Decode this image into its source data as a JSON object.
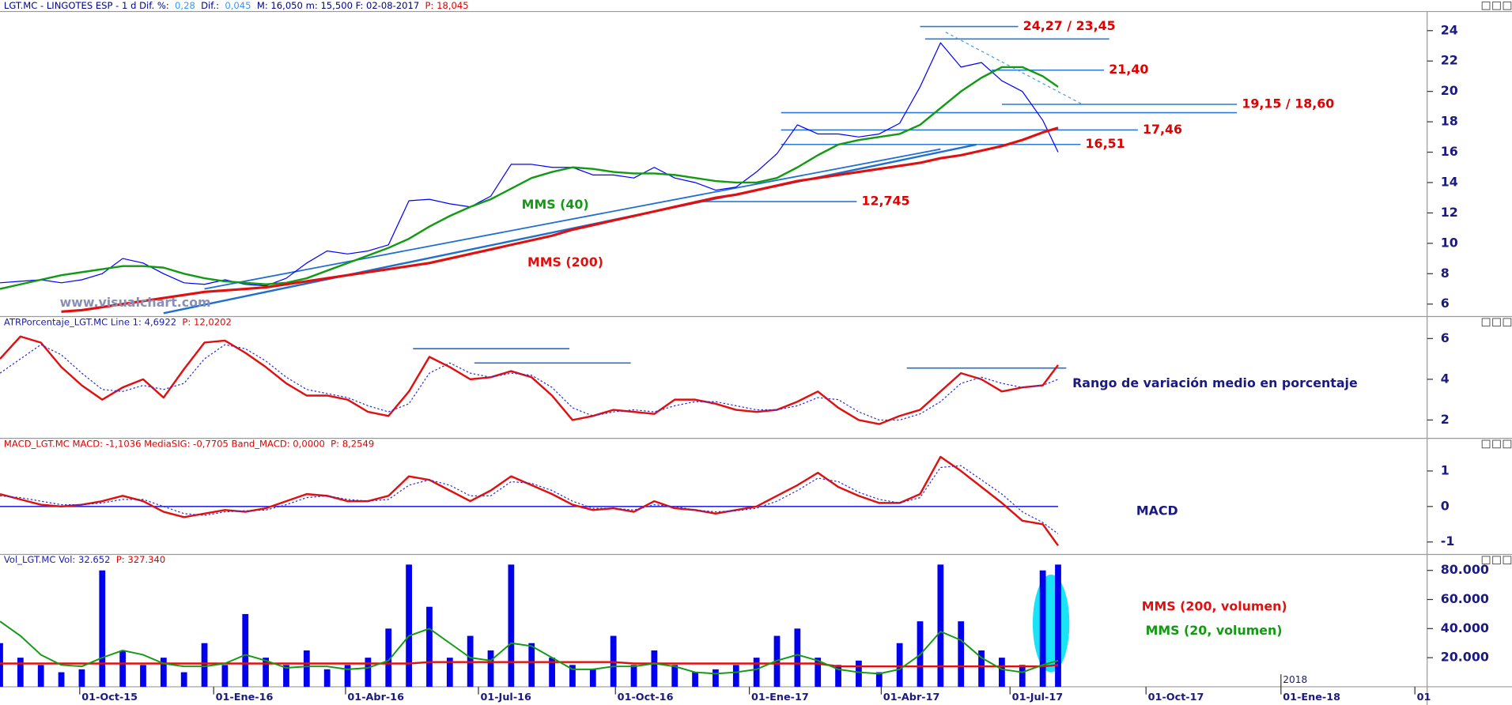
{
  "chart_data": [
    {
      "type": "line",
      "title_parts": [
        {
          "text": "LGT.MC - LINGOTES ESP -  1 d  Dif. %:",
          "color": "#00008b"
        },
        {
          "text": "0,28",
          "color": "#3399ff"
        },
        {
          "text": "Dif.:",
          "color": "#00008b"
        },
        {
          "text": "0,045",
          "color": "#3399ff"
        },
        {
          "text": "M: 16,050  m: 15,500  F: 02-08-2017",
          "color": "#00008b"
        },
        {
          "text": "P: 18,045",
          "color": "#e00000"
        }
      ],
      "watermark": "www.visualchart.com",
      "x": [
        0,
        2,
        4,
        6,
        8,
        10,
        12,
        14,
        16,
        18,
        20,
        22,
        24,
        26,
        28,
        30,
        32,
        34,
        36,
        38,
        40,
        42,
        44,
        46,
        48,
        50,
        52,
        54,
        56,
        58,
        60,
        62,
        64,
        66,
        68,
        70,
        72,
        74,
        76,
        78,
        80,
        82,
        84,
        86,
        88,
        90,
        92,
        94,
        96,
        98,
        100,
        102,
        103.5
      ],
      "xlim": [
        0,
        139.6
      ],
      "ylim": [
        5.18,
        25.26
      ],
      "yticks": [
        6,
        8,
        10,
        12,
        14,
        16,
        18,
        20,
        22,
        24
      ],
      "series": [
        {
          "color": "#0000ff",
          "width": 1,
          "values": [
            7.4,
            7.5,
            7.6,
            7.4,
            7.6,
            8.0,
            9.0,
            8.7,
            8.0,
            7.4,
            7.3,
            7.6,
            7.3,
            7.2,
            7.7,
            8.7,
            9.5,
            9.3,
            9.5,
            9.9,
            12.8,
            12.9,
            12.6,
            12.4,
            13.1,
            15.2,
            15.2,
            15.0,
            15.0,
            14.5,
            14.5,
            14.3,
            15.0,
            14.3,
            14.0,
            13.5,
            13.7,
            14.7,
            15.9,
            17.8,
            17.2,
            17.2,
            17.0,
            17.2,
            17.9,
            20.3,
            23.2,
            21.6,
            21.9,
            20.7,
            20.0,
            18.1,
            16.0
          ]
        },
        {
          "name": "MMS (40)",
          "color": "#139a13",
          "width": 2,
          "values": [
            7.0,
            7.3,
            7.6,
            7.9,
            8.1,
            8.3,
            8.5,
            8.5,
            8.4,
            8.0,
            7.7,
            7.5,
            7.4,
            7.3,
            7.4,
            7.7,
            8.2,
            8.7,
            9.2,
            9.7,
            10.3,
            11.1,
            11.8,
            12.4,
            12.9,
            13.6,
            14.3,
            14.7,
            15.0,
            14.9,
            14.7,
            14.6,
            14.6,
            14.5,
            14.3,
            14.1,
            14.0,
            14.0,
            14.3,
            15.0,
            15.8,
            16.5,
            16.8,
            17.0,
            17.2,
            17.8,
            18.9,
            20.0,
            20.9,
            21.6,
            21.6,
            21.0,
            20.3
          ]
        },
        {
          "name": "MMS (200)",
          "color": "#e01010",
          "width": 2.6,
          "values": [
            null,
            null,
            null,
            5.5,
            5.6,
            5.8,
            6.0,
            6.2,
            6.4,
            6.6,
            6.8,
            6.9,
            7.0,
            7.1,
            7.3,
            7.5,
            7.7,
            7.9,
            8.1,
            8.3,
            8.5,
            8.7,
            9.0,
            9.3,
            9.6,
            9.9,
            10.2,
            10.5,
            10.9,
            11.2,
            11.5,
            11.8,
            12.1,
            12.4,
            12.7,
            13.0,
            13.2,
            13.5,
            13.8,
            14.1,
            14.3,
            14.5,
            14.7,
            14.9,
            15.1,
            15.3,
            15.6,
            15.8,
            16.1,
            16.4,
            16.8,
            17.3,
            17.6
          ]
        }
      ],
      "levels": [
        {
          "value": 24.27,
          "from": 90,
          "to": 99.6,
          "label": "24,27 / 23,45"
        },
        {
          "value": 23.45,
          "from": 90.5,
          "to": 108.5
        },
        {
          "value": 21.4,
          "from": 97,
          "to": 108,
          "label": "21,40"
        },
        {
          "value": 19.15,
          "from": 98,
          "to": 121,
          "label": "19,15 / 18,60"
        },
        {
          "value": 18.6,
          "from": 76.4,
          "to": 121
        },
        {
          "value": 17.46,
          "from": 76.4,
          "to": 111.3,
          "label": "17,46"
        },
        {
          "value": 16.51,
          "from": 76.4,
          "to": 105.7,
          "label": "16,51"
        },
        {
          "value": 12.745,
          "from": 68,
          "to": 83.8,
          "label": "12,745"
        }
      ],
      "level_color": "#2a7ad6",
      "level_label_color": "#e00000",
      "trendlines": [
        {
          "color": "#1f6fd0",
          "width": 2,
          "dash": false,
          "points": [
            [
              16,
              5.4
            ],
            [
              95.5,
              16.5
            ]
          ]
        },
        {
          "color": "#1f6fd0",
          "width": 1.5,
          "dash": false,
          "points": [
            [
              20,
              7.0
            ],
            [
              92,
              16.2
            ]
          ]
        },
        {
          "color": "#4a9ae0",
          "width": 1,
          "dash": true,
          "points": [
            [
              92.5,
              23.9
            ],
            [
              106,
              19.1
            ]
          ]
        }
      ]
    },
    {
      "type": "line",
      "title_parts": [
        {
          "text": "ATRPorcentaje_LGT.MC  Line 1: 4,6922",
          "color": "#1c1cb0"
        },
        {
          "text": "P: 12,0202",
          "color": "#e00000"
        }
      ],
      "note": "Rango de variación medio en porcentaje",
      "x": [
        0,
        2,
        4,
        6,
        8,
        10,
        12,
        14,
        16,
        18,
        20,
        22,
        24,
        26,
        28,
        30,
        32,
        34,
        36,
        38,
        40,
        42,
        44,
        46,
        48,
        50,
        52,
        54,
        56,
        58,
        60,
        62,
        64,
        66,
        68,
        70,
        72,
        74,
        76,
        78,
        80,
        82,
        84,
        86,
        88,
        90,
        92,
        94,
        96,
        98,
        100,
        102,
        103.5
      ],
      "xlim": [
        0,
        139.6
      ],
      "ylim": [
        1.1,
        7.08
      ],
      "yticks": [
        2,
        4,
        6
      ],
      "series": [
        {
          "color": "#e01010",
          "width": 2,
          "values": [
            5.0,
            6.1,
            5.8,
            4.6,
            3.7,
            3.0,
            3.6,
            4.0,
            3.1,
            4.5,
            5.8,
            5.9,
            5.3,
            4.6,
            3.8,
            3.2,
            3.2,
            3.0,
            2.4,
            2.2,
            3.4,
            5.1,
            4.6,
            4.0,
            4.1,
            4.4,
            4.1,
            3.2,
            2.0,
            2.2,
            2.5,
            2.4,
            2.3,
            3.0,
            3.0,
            2.8,
            2.5,
            2.4,
            2.5,
            2.9,
            3.4,
            2.6,
            2.0,
            1.8,
            2.2,
            2.5,
            3.4,
            4.3,
            4.0,
            3.4,
            3.6,
            3.7,
            4.7
          ]
        },
        {
          "color": "#2a2ae0",
          "width": 1,
          "dash": true,
          "values": [
            4.3,
            5.0,
            5.7,
            5.2,
            4.3,
            3.5,
            3.4,
            3.7,
            3.5,
            3.8,
            5.0,
            5.7,
            5.5,
            4.9,
            4.1,
            3.5,
            3.3,
            3.1,
            2.7,
            2.4,
            2.8,
            4.3,
            4.8,
            4.3,
            4.1,
            4.3,
            4.2,
            3.6,
            2.6,
            2.2,
            2.4,
            2.5,
            2.4,
            2.7,
            2.9,
            2.9,
            2.7,
            2.5,
            2.5,
            2.7,
            3.1,
            3.0,
            2.4,
            2.0,
            2.0,
            2.3,
            2.9,
            3.8,
            4.1,
            3.8,
            3.6,
            3.7,
            4.0
          ]
        }
      ],
      "levels": [
        {
          "value": 5.5,
          "from": 40.4,
          "to": 55.7
        },
        {
          "value": 4.8,
          "from": 46.4,
          "to": 61.7
        },
        {
          "value": 4.55,
          "from": 88.7,
          "to": 104.3
        }
      ],
      "level_color": "#1f6fd0"
    },
    {
      "type": "line",
      "title_parts": [
        {
          "text": "MACD_LGT.MC  MACD: -1,1036  MediaSIG: -0,7705  Band_MACD: 0,0000",
          "color": "#e00000"
        },
        {
          "text": "P: 8,2549",
          "color": "#e00000"
        }
      ],
      "note": "MACD",
      "x": [
        0,
        2,
        4,
        6,
        8,
        10,
        12,
        14,
        16,
        18,
        20,
        22,
        24,
        26,
        28,
        30,
        32,
        34,
        36,
        38,
        40,
        42,
        44,
        46,
        48,
        50,
        52,
        54,
        56,
        58,
        60,
        62,
        64,
        66,
        68,
        70,
        72,
        74,
        76,
        78,
        80,
        82,
        84,
        86,
        88,
        90,
        92,
        94,
        96,
        98,
        100,
        102,
        103.5
      ],
      "xlim": [
        0,
        139.6
      ],
      "ylim": [
        -1.35,
        1.92
      ],
      "yticks": [
        -1,
        0,
        1
      ],
      "levels": [
        {
          "value": 0,
          "from": 0,
          "to": 103.5
        }
      ],
      "level_color": "#2a2ae0",
      "series": [
        {
          "color": "#e01010",
          "width": 2,
          "values": [
            0.35,
            0.2,
            0.05,
            0.0,
            0.05,
            0.15,
            0.3,
            0.15,
            -0.15,
            -0.3,
            -0.2,
            -0.1,
            -0.15,
            -0.05,
            0.15,
            0.35,
            0.3,
            0.15,
            0.15,
            0.3,
            0.85,
            0.75,
            0.45,
            0.15,
            0.45,
            0.85,
            0.6,
            0.35,
            0.05,
            -0.1,
            -0.05,
            -0.15,
            0.15,
            -0.05,
            -0.1,
            -0.2,
            -0.1,
            0.0,
            0.3,
            0.6,
            0.95,
            0.55,
            0.3,
            0.1,
            0.1,
            0.35,
            1.4,
            1.0,
            0.55,
            0.1,
            -0.4,
            -0.5,
            -1.1
          ]
        },
        {
          "color": "#2a2ae0",
          "width": 1,
          "dash": true,
          "values": [
            0.3,
            0.25,
            0.15,
            0.05,
            0.05,
            0.1,
            0.2,
            0.2,
            0.0,
            -0.2,
            -0.25,
            -0.15,
            -0.12,
            -0.1,
            0.05,
            0.25,
            0.3,
            0.2,
            0.15,
            0.2,
            0.6,
            0.75,
            0.6,
            0.3,
            0.3,
            0.7,
            0.65,
            0.45,
            0.15,
            -0.05,
            -0.05,
            -0.1,
            0.05,
            0.0,
            -0.1,
            -0.15,
            -0.12,
            -0.05,
            0.15,
            0.45,
            0.8,
            0.7,
            0.4,
            0.2,
            0.1,
            0.25,
            1.1,
            1.15,
            0.75,
            0.35,
            -0.15,
            -0.45,
            -0.77
          ]
        }
      ]
    },
    {
      "type": "bar",
      "title_parts": [
        {
          "text": "Vol_LGT.MC  Vol: 32.652",
          "color": "#1c1cb0"
        },
        {
          "text": "P: 327.340",
          "color": "#e00000"
        }
      ],
      "x": [
        0,
        2,
        4,
        6,
        8,
        10,
        12,
        14,
        16,
        18,
        20,
        22,
        24,
        26,
        28,
        30,
        32,
        34,
        36,
        38,
        40,
        42,
        44,
        46,
        48,
        50,
        52,
        54,
        56,
        58,
        60,
        62,
        64,
        66,
        68,
        70,
        72,
        74,
        76,
        78,
        80,
        82,
        84,
        86,
        88,
        90,
        92,
        94,
        96,
        98,
        100,
        102,
        103.5
      ],
      "xlim": [
        0,
        139.6
      ],
      "ylim": [
        0,
        91000
      ],
      "yticks": [
        {
          "value": 20000,
          "label": "20.000"
        },
        {
          "value": 40000,
          "label": "40.000"
        },
        {
          "value": 60000,
          "label": "60.000"
        },
        {
          "value": 80000,
          "label": "80.000"
        }
      ],
      "xticks": [
        {
          "value": 7.8,
          "label": "01-Oct-15"
        },
        {
          "value": 20.9,
          "label": "01-Ene-16"
        },
        {
          "value": 33.8,
          "label": "01-Abr-16"
        },
        {
          "value": 46.8,
          "label": "01-Jul-16"
        },
        {
          "value": 60.2,
          "label": "01-Oct-16"
        },
        {
          "value": 73.3,
          "label": "01-Ene-17"
        },
        {
          "value": 86.2,
          "label": "01-Abr-17"
        },
        {
          "value": 98.8,
          "label": "01-Jul-17"
        },
        {
          "value": 112.1,
          "label": "01-Oct-17"
        },
        {
          "value": 125.3,
          "label": "01-Ene-18"
        },
        {
          "value": 138.4,
          "label": "01"
        }
      ],
      "year_marks": [
        {
          "value": 125.3,
          "label": "2018"
        }
      ],
      "series": [
        {
          "type": "bar",
          "color": "#0000ee",
          "values": [
            30000,
            20000,
            15000,
            10000,
            12000,
            80000,
            25000,
            15000,
            20000,
            10000,
            30000,
            15000,
            50000,
            20000,
            15000,
            25000,
            12000,
            15000,
            20000,
            40000,
            84000,
            55000,
            20000,
            35000,
            25000,
            84000,
            30000,
            20000,
            15000,
            12000,
            35000,
            15000,
            25000,
            15000,
            10000,
            12000,
            15000,
            20000,
            35000,
            40000,
            20000,
            15000,
            18000,
            10000,
            30000,
            45000,
            84000,
            45000,
            25000,
            20000,
            15000,
            80000,
            84000
          ]
        },
        {
          "type": "line",
          "name": "MMS (200, volumen)",
          "color": "#e01010",
          "width": 2,
          "values": [
            16000,
            16000,
            16000,
            16000,
            16000,
            16000,
            16000,
            16000,
            16000,
            16000,
            16000,
            16000,
            16000,
            16000,
            16000,
            16000,
            16000,
            16000,
            16000,
            16000,
            16000,
            17000,
            17000,
            17000,
            17000,
            17000,
            17000,
            17000,
            17000,
            17000,
            17000,
            16000,
            16000,
            16000,
            16000,
            16000,
            16000,
            16000,
            16000,
            16000,
            16000,
            14000,
            14000,
            14000,
            14000,
            14000,
            14000,
            14000,
            14000,
            14000,
            14000,
            14000,
            15000
          ]
        },
        {
          "type": "line",
          "name": "MMS (20, volumen)",
          "color": "#139a13",
          "width": 1.6,
          "values": [
            45000,
            35000,
            22000,
            15000,
            14000,
            20000,
            25000,
            22000,
            16000,
            14000,
            14000,
            16000,
            22000,
            18000,
            13000,
            14000,
            14000,
            12000,
            13000,
            18000,
            35000,
            40000,
            30000,
            20000,
            18000,
            30000,
            28000,
            20000,
            12000,
            12000,
            14000,
            14000,
            16000,
            14000,
            10000,
            9000,
            10000,
            12000,
            18000,
            22000,
            18000,
            12000,
            10000,
            9000,
            12000,
            22000,
            38000,
            32000,
            20000,
            12000,
            10000,
            15000,
            18000
          ]
        }
      ]
    }
  ]
}
